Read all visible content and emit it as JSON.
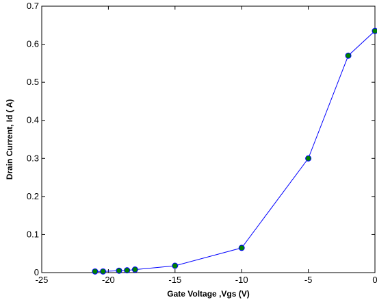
{
  "chart_data": {
    "type": "line",
    "title": "",
    "xlabel": "Gate Voltage ,Vgs (V)",
    "ylabel": "Drain Current, Id ( A)",
    "xlim": [
      -25,
      0
    ],
    "ylim": [
      0,
      0.7
    ],
    "x_ticks": [
      -25,
      -20,
      -15,
      -10,
      -5,
      0
    ],
    "y_ticks": [
      0,
      0.1,
      0.2,
      0.3,
      0.4,
      0.5,
      0.6,
      0.7
    ],
    "grid": false,
    "legend": "none",
    "colors": {
      "line": "#0000ff",
      "marker_fill": "#008000",
      "marker_edge": "#0000ff"
    },
    "series": [
      {
        "x": [
          -21,
          -20.4,
          -19.2,
          -18.6,
          -18,
          -15,
          -10,
          -5,
          -2,
          0
        ],
        "y": [
          0.003,
          0.003,
          0.005,
          0.006,
          0.008,
          0.018,
          0.065,
          0.3,
          0.57,
          0.635
        ]
      }
    ]
  }
}
